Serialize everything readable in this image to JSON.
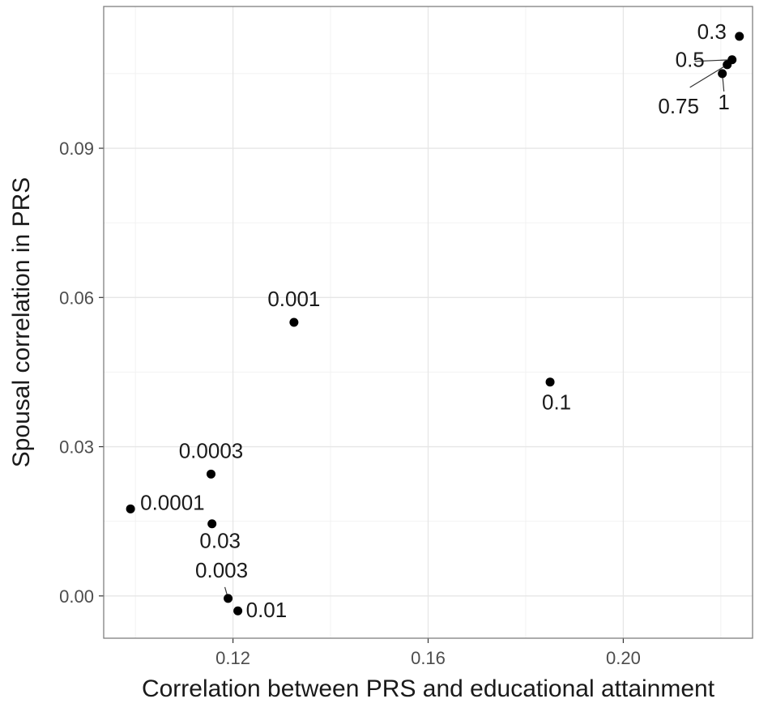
{
  "chart_data": {
    "type": "scatter",
    "title": "",
    "xlabel": "Correlation between PRS and educational attainment",
    "ylabel": "Spousal correlation in PRS",
    "xlim": [
      0.0935,
      0.2265
    ],
    "ylim": [
      -0.0085,
      0.1185
    ],
    "xticks": [
      0.12,
      0.16,
      0.2
    ],
    "xtick_labels": [
      "0.12",
      "0.16",
      "0.20"
    ],
    "yticks": [
      0.0,
      0.03,
      0.06,
      0.09
    ],
    "ytick_labels": [
      "0.00",
      "0.03",
      "0.06",
      "0.09"
    ],
    "grid": true,
    "legend": "none",
    "point_color": "#000000",
    "points": [
      {
        "label": "0.0001",
        "x": 0.099,
        "y": 0.0175
      },
      {
        "label": "0.0003",
        "x": 0.1155,
        "y": 0.0245
      },
      {
        "label": "0.001",
        "x": 0.1325,
        "y": 0.055
      },
      {
        "label": "0.003",
        "x": 0.119,
        "y": -0.0005
      },
      {
        "label": "0.01",
        "x": 0.121,
        "y": -0.003
      },
      {
        "label": "0.03",
        "x": 0.1157,
        "y": 0.0145
      },
      {
        "label": "0.1",
        "x": 0.185,
        "y": 0.043
      },
      {
        "label": "0.3",
        "x": 0.2238,
        "y": 0.1125
      },
      {
        "label": "0.5",
        "x": 0.2223,
        "y": 0.1078
      },
      {
        "label": "0.75",
        "x": 0.2213,
        "y": 0.1068
      },
      {
        "label": "1",
        "x": 0.2203,
        "y": 0.105
      }
    ]
  }
}
